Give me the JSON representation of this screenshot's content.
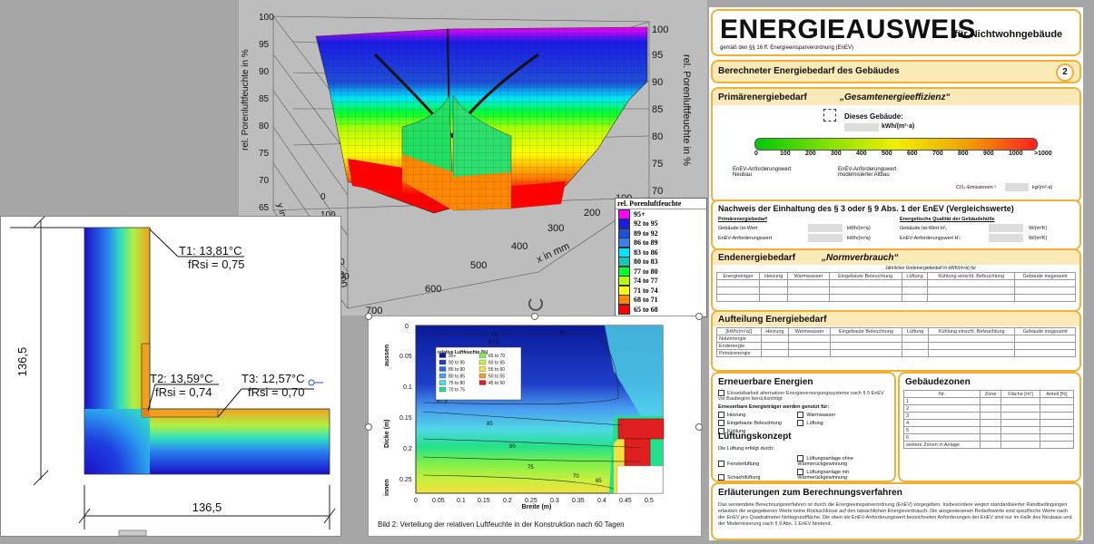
{
  "plot3d": {
    "z_title_left": "rel. Porenluftfeuchte in %",
    "z_title_right": "rel. Porenluftfeuchte in %",
    "y_title": "y in mm",
    "x_title": "x in mm",
    "z_ticks": [
      "100",
      "95",
      "90",
      "85",
      "80",
      "75",
      "70",
      "65"
    ],
    "y_ticks": [
      "0",
      "100",
      "200",
      "300",
      "400",
      "500",
      "600",
      "700"
    ],
    "x_ticks": [
      "400",
      "500",
      "600",
      "700"
    ],
    "left_y_ticks": [
      "100",
      "200",
      "300",
      "400",
      "500",
      "600"
    ],
    "legend_title": "rel. Porenluftfeuchte",
    "legend": [
      {
        "label": "95+",
        "color": "#ff00ff"
      },
      {
        "label": "92 to 95",
        "color": "#1a1ae6"
      },
      {
        "label": "89 to 92",
        "color": "#1e4fd8"
      },
      {
        "label": "86 to 89",
        "color": "#3c7df0"
      },
      {
        "label": "83 to 86",
        "color": "#00e5ff"
      },
      {
        "label": "80 to 83",
        "color": "#19c8b4"
      },
      {
        "label": "77 to 80",
        "color": "#00ff33"
      },
      {
        "label": "74 to 77",
        "color": "#b4ff00"
      },
      {
        "label": "71 to 74",
        "color": "#ffff00"
      },
      {
        "label": "68 to 71",
        "color": "#ff8800"
      },
      {
        "label": "65 to 68",
        "color": "#ff0000"
      }
    ]
  },
  "thermal": {
    "dim_left": "136,5",
    "dim_bottom": "136,5",
    "t1": "T1: 13,81°C",
    "f1": "fRsi = 0,75",
    "t2": "T2: 13,59°C",
    "f2": "fRsi = 0,74",
    "t3": "T3: 12,57°C",
    "f3": "fRsi = 0,70"
  },
  "humidity": {
    "ylabel": "Dicke (m)",
    "xlabel": "Breite (m)",
    "top_label": "aussen",
    "bottom_label": "innen",
    "x_ticks": [
      "0",
      "0.05",
      "0.1",
      "0.15",
      "0.2",
      "0.25",
      "0.3",
      "0.35",
      "0.4",
      "0.45",
      "0.5"
    ],
    "y_ticks": [
      "0",
      "0.05",
      "0.1",
      "0.15",
      "0.2",
      "0.25"
    ],
    "legend_title": "relative Luftfeuchte (%)",
    "legend": [
      {
        "label": "95+",
        "color": "#0a1a9c"
      },
      {
        "label": "90 to 95",
        "color": "#1f3fc8"
      },
      {
        "label": "85 to 90",
        "color": "#2f6ae0"
      },
      {
        "label": "80 to 85",
        "color": "#4aa0f0"
      },
      {
        "label": "75 to 80",
        "color": "#50d8e8"
      },
      {
        "label": "70 to 75",
        "color": "#22e08c"
      },
      {
        "label": "65 to 70",
        "color": "#7ef04a"
      },
      {
        "label": "60 to 65",
        "color": "#c8f03c"
      },
      {
        "label": "55 to 60",
        "color": "#f0e040"
      },
      {
        "label": "50 to 55",
        "color": "#f0a030"
      },
      {
        "label": "45 to 50",
        "color": "#e02020"
      }
    ],
    "contour_labels": [
      "70",
      "75",
      "97.5",
      "87.5",
      "85",
      "80",
      "75",
      "70",
      "65",
      "70",
      "75"
    ],
    "caption": "Bild 2:   Verteilung der relativen Luftfeuchte in der Konstruktion nach 60 Tagen"
  },
  "cert": {
    "title": "ENERGIEAUSWEIS",
    "title_suffix": "für Nichtwohngebäude",
    "subtitle": "gemäß den §§ 16 ff. Energieeinsparverordnung (EnEV)",
    "section_title": "Berechneter Energiebedarf des Gebäudes",
    "page_no": "2",
    "primary_title": "Primärenergiebedarf",
    "primary_quote": "„Gesamtenergieeffizienz“",
    "this_building": "Dieses Gebäude:",
    "unit": "kWh/(m²·a)",
    "scale": [
      "0",
      "100",
      "200",
      "300",
      "400",
      "500",
      "600",
      "700",
      "800",
      "900",
      "1000",
      ">1000"
    ],
    "req_label": "EnEV-Anforderungswert\nNeubau",
    "req_label2": "EnEV-Anforderungswert\nmodernisierter Altbau",
    "co2": "CO₂-Emissionen ¹",
    "co2_unit": "kg/(m²·a)",
    "proof_title": "Nachweis der Einhaltung des § 3 oder § 9 Abs. 1 der EnEV (Vergleichswerte)",
    "proof_left_h": "Primärenergiebedarf",
    "proof_right_h": "Energetische Qualität der Gebäudehülle",
    "proof_rows_left": [
      "Gebäude Ist-Wert",
      "EnEV-Anforderungswert"
    ],
    "proof_rows_right": [
      "Gebäude Ist-Wert H'ₜ",
      "EnEV-Anforderungswert H'ₜ"
    ],
    "proof_unit_l": "kWh/(m²a)",
    "proof_unit_r": "W/(m²K)",
    "end_title": "Endenergiebedarf",
    "end_quote": "„Normverbrauch“",
    "end_note": "Jährlicher Endenergiebedarf in kWh/(m²a) für",
    "end_cols": [
      "Energieträger",
      "Heizung",
      "Warmwasser",
      "Eingebaute Beleuchtung",
      "Lüftung",
      "Kühlung einschl. Befeuchtung",
      "Gebäude insgesamt"
    ],
    "split_title": "Aufteilung Energiebedarf",
    "split_cols": [
      "[kWh/(m²a)]",
      "Heizung",
      "Warmwasser",
      "Eingebaute Beleuchtung",
      "Lüftung",
      "Kühlung einschl. Befeuchtung",
      "Gebäude insgesamt"
    ],
    "split_rows": [
      "Nutzenergie",
      "Endenergie",
      "Primärenergie"
    ],
    "renew_title": "Erneuerbare Energien",
    "renew_text1": "Einsetzbarkeit alternativer Energieversorgungssysteme nach § 5 EnEV vor Baubeginn berücksichtigt",
    "renew_text2": "Erneuerbare Energieträger werden genutzt für:",
    "renew_opts": [
      "Heizung",
      "Warmwasser",
      "Eingebaute Beleuchtung",
      "Lüftung",
      "Kühlung"
    ],
    "vent_title": "Lüftungskonzept",
    "vent_text": "Die Lüftung erfolgt durch:",
    "vent_opts": [
      "Fensterlüftung",
      "Lüftungsanlage ohne Wärmerückgewinnung",
      "Schachtlüftung",
      "Lüftungsanlage mit Wärmerückgewinnung"
    ],
    "zones_title": "Gebäudezonen",
    "zones_cols": [
      "Nr.",
      "Zone",
      "Fläche [m²]",
      "Anteil [%]"
    ],
    "zones_rows": [
      "1",
      "2",
      "3",
      "4",
      "5",
      "6"
    ],
    "zones_more": "weitere Zonen in Anlage",
    "expl_title": "Erläuterungen zum Berechnungsverfahren",
    "expl_text": "Das verwendete Berechnungsverfahren ist durch die Energieeinsparverordnung (EnEV) vorgegeben. Insbesondere wegen standardisierter Randbedingungen erlauben die angegebenen Werte keine Rückschlüsse auf den tatsächlichen Energieverbrauch. Die ausgewiesenen Bedarfswerte sind spezifische Werte nach der EnEV pro Quadratmeter Nettogrundfläche. Die oben als EnEV-Anforderungswert bezeichneten Anforderungen der EnEV sind nur im Falle des Neubaus und der Modernisierung nach § 9 Abs. 1 EnEV bindend."
  }
}
